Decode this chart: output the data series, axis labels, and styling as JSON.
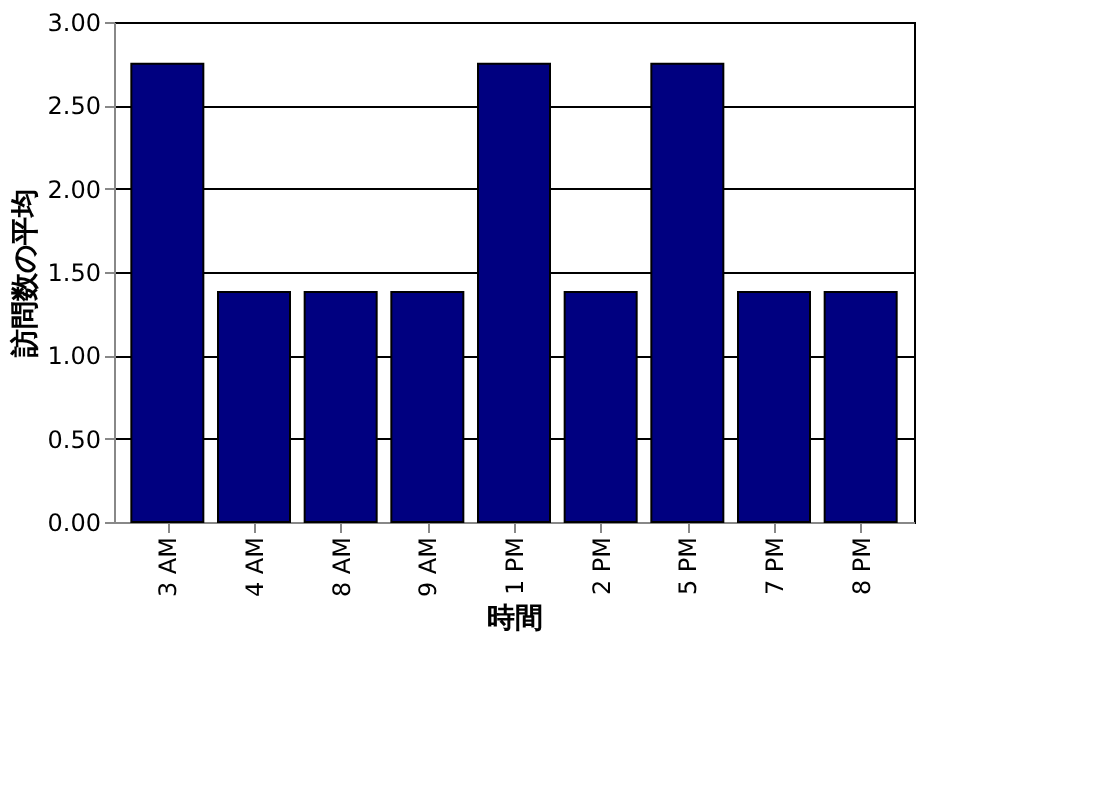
{
  "chart_data": {
    "type": "bar",
    "xlabel": "時間",
    "ylabel": "訪問数の平均",
    "categories": [
      "3 AM",
      "4 AM",
      "8 AM",
      "9 AM",
      "1 PM",
      "2 PM",
      "5 PM",
      "7 PM",
      "8 PM"
    ],
    "values": [
      2.75,
      1.38,
      1.38,
      1.38,
      2.75,
      1.38,
      2.75,
      1.38,
      1.38
    ],
    "color": "#000080",
    "ylim": [
      0,
      3
    ],
    "yticks": [
      {
        "value": 0,
        "label": "0.00"
      },
      {
        "value": 0.5,
        "label": "0.50"
      },
      {
        "value": 1,
        "label": "1.00"
      },
      {
        "value": 1.5,
        "label": "1.50"
      },
      {
        "value": 2,
        "label": "2.00"
      },
      {
        "value": 2.5,
        "label": "2.50"
      },
      {
        "value": 3,
        "label": "3.00"
      }
    ],
    "grid": "y"
  }
}
